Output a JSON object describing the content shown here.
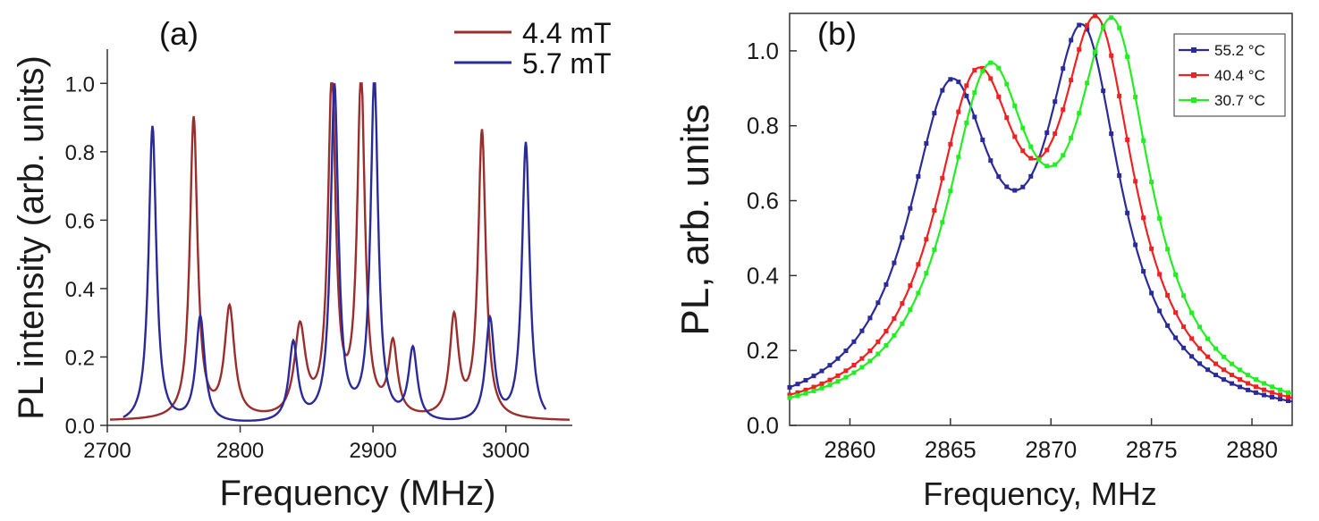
{
  "chart_data": [
    {
      "panel": "(a)",
      "type": "line",
      "xlabel": "Frequency (MHz)",
      "ylabel": "PL intensity (arb. units)",
      "xlim": [
        2700,
        3050
      ],
      "ylim": [
        0,
        1.1
      ],
      "xticks": [
        "2700",
        "2800",
        "2900",
        "3000"
      ],
      "yticks": [
        "0.0",
        "0.2",
        "0.4",
        "0.6",
        "0.8",
        "1.0"
      ],
      "legend_position": "top-right",
      "series": [
        {
          "name": "4.4 mT",
          "color": "#9b2d2d",
          "baseline": 0.012,
          "peaks": [
            {
              "x": 2765,
              "y": 0.88,
              "w": 3.5
            },
            {
              "x": 2792,
              "y": 0.32,
              "w": 4.5
            },
            {
              "x": 2845,
              "y": 0.26,
              "w": 5
            },
            {
              "x": 2869,
              "y": 0.99,
              "w": 3.5
            },
            {
              "x": 2891,
              "y": 0.99,
              "w": 3.5
            },
            {
              "x": 2915,
              "y": 0.21,
              "w": 4
            },
            {
              "x": 2961,
              "y": 0.29,
              "w": 4
            },
            {
              "x": 2982,
              "y": 0.84,
              "w": 3.5
            }
          ]
        },
        {
          "name": "5.7 mT",
          "color": "#2a2a9a",
          "baseline": 0.0,
          "peaks": [
            {
              "x": 2734,
              "y": 0.87,
              "w": 3.5
            },
            {
              "x": 2770,
              "y": 0.31,
              "w": 4
            },
            {
              "x": 2840,
              "y": 0.23,
              "w": 4
            },
            {
              "x": 2871,
              "y": 0.98,
              "w": 3.5
            },
            {
              "x": 2901,
              "y": 1.0,
              "w": 3.5
            },
            {
              "x": 2930,
              "y": 0.21,
              "w": 4
            },
            {
              "x": 2988,
              "y": 0.3,
              "w": 4
            },
            {
              "x": 3015,
              "y": 0.82,
              "w": 3.5
            }
          ]
        }
      ]
    },
    {
      "panel": "(b)",
      "type": "line",
      "xlabel": "Frequency, MHz",
      "ylabel": "PL, arb. units",
      "xlim": [
        2857,
        2882
      ],
      "ylim": [
        0,
        1.1
      ],
      "xticks": [
        "2860",
        "2865",
        "2870",
        "2875",
        "2880"
      ],
      "yticks": [
        "0.0",
        "0.2",
        "0.4",
        "0.6",
        "0.8",
        "1.0"
      ],
      "legend_position": "top-right",
      "series": [
        {
          "name": "55.2 °C",
          "color": "#2a2a9a",
          "peaks": [
            {
              "x": 2865.0,
              "y": 0.82,
              "w": 2.6
            },
            {
              "x": 2871.6,
              "y": 0.96,
              "w": 2.3
            }
          ]
        },
        {
          "name": "40.4 °C",
          "color": "#ee2222",
          "peaks": [
            {
              "x": 2866.3,
              "y": 0.83,
              "w": 2.6
            },
            {
              "x": 2872.3,
              "y": 0.96,
              "w": 2.3
            }
          ]
        },
        {
          "name": "30.7 °C",
          "color": "#22ee22",
          "peaks": [
            {
              "x": 2866.9,
              "y": 0.85,
              "w": 2.6
            },
            {
              "x": 2873.1,
              "y": 0.96,
              "w": 2.3
            }
          ]
        }
      ]
    }
  ]
}
